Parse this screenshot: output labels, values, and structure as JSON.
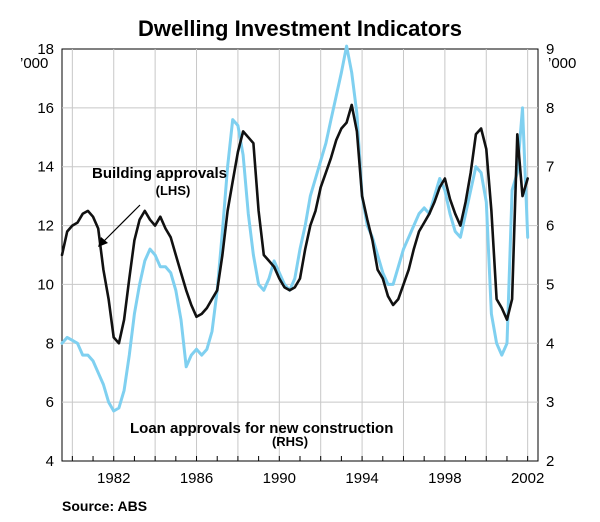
{
  "chart_data": {
    "type": "line",
    "title": "Dwelling Investment Indicators",
    "source": "Source: ABS",
    "left_axis": {
      "unit": "’000",
      "ylim": [
        4,
        18
      ],
      "ticks": [
        4,
        6,
        8,
        10,
        12,
        14,
        16,
        18
      ]
    },
    "right_axis": {
      "unit": "’000",
      "ylim": [
        2,
        9
      ],
      "ticks": [
        2,
        3,
        4,
        5,
        6,
        7,
        8,
        9
      ]
    },
    "x_axis": {
      "xlim": [
        1979.5,
        2002.5
      ],
      "ticks": [
        1982,
        1986,
        1990,
        1994,
        1998,
        2002
      ],
      "tick_labels": [
        "1982",
        "1986",
        "1990",
        "1994",
        "1998",
        "2002"
      ]
    },
    "series": [
      {
        "name": "Building approvals",
        "label_line1": "Building approvals",
        "label_line2": "(LHS)",
        "axis": "left",
        "color": "#111111",
        "x": [
          1979.5,
          1979.75,
          1980.0,
          1980.25,
          1980.5,
          1980.75,
          1981.0,
          1981.25,
          1981.5,
          1981.75,
          1982.0,
          1982.25,
          1982.5,
          1982.75,
          1983.0,
          1983.25,
          1983.5,
          1983.75,
          1984.0,
          1984.25,
          1984.5,
          1984.75,
          1985.0,
          1985.25,
          1985.5,
          1985.75,
          1986.0,
          1986.25,
          1986.5,
          1986.75,
          1987.0,
          1987.25,
          1987.5,
          1987.75,
          1988.0,
          1988.25,
          1988.5,
          1988.75,
          1989.0,
          1989.25,
          1989.5,
          1989.75,
          1990.0,
          1990.25,
          1990.5,
          1990.75,
          1991.0,
          1991.25,
          1991.5,
          1991.75,
          1992.0,
          1992.25,
          1992.5,
          1992.75,
          1993.0,
          1993.25,
          1993.5,
          1993.75,
          1994.0,
          1994.25,
          1994.5,
          1994.75,
          1995.0,
          1995.25,
          1995.5,
          1995.75,
          1996.0,
          1996.25,
          1996.5,
          1996.75,
          1997.0,
          1997.25,
          1997.5,
          1997.75,
          1998.0,
          1998.25,
          1998.5,
          1998.75,
          1999.0,
          1999.25,
          1999.5,
          1999.75,
          2000.0,
          2000.25,
          2000.5,
          2000.75,
          2001.0,
          2001.25,
          2001.5,
          2001.75,
          2002.0
        ],
        "values": [
          11.0,
          11.8,
          12.0,
          12.1,
          12.4,
          12.5,
          12.3,
          11.9,
          10.5,
          9.5,
          8.2,
          8.0,
          8.8,
          10.2,
          11.5,
          12.2,
          12.5,
          12.2,
          12.0,
          12.3,
          11.9,
          11.6,
          11.0,
          10.4,
          9.8,
          9.3,
          8.9,
          9.0,
          9.2,
          9.5,
          9.8,
          11.0,
          12.5,
          13.5,
          14.5,
          15.2,
          15.0,
          14.8,
          12.5,
          11.0,
          10.8,
          10.6,
          10.2,
          9.9,
          9.8,
          9.9,
          10.2,
          11.2,
          12.0,
          12.5,
          13.3,
          13.8,
          14.3,
          14.9,
          15.3,
          15.5,
          16.1,
          15.2,
          13.0,
          12.2,
          11.5,
          10.5,
          10.2,
          9.6,
          9.3,
          9.5,
          10.0,
          10.5,
          11.2,
          11.8,
          12.1,
          12.4,
          12.8,
          13.3,
          13.6,
          12.9,
          12.4,
          12.0,
          12.8,
          13.8,
          15.1,
          15.3,
          14.6,
          12.5,
          9.5,
          9.2,
          8.8,
          9.5,
          15.1,
          13.0,
          13.6
        ]
      },
      {
        "name": "Loan approvals for new construction",
        "label_line1": "Loan approvals for new construction",
        "label_line2": "(RHS)",
        "axis": "right",
        "color": "#7fd0f0",
        "x": [
          1979.5,
          1979.75,
          1980.0,
          1980.25,
          1980.5,
          1980.75,
          1981.0,
          1981.25,
          1981.5,
          1981.75,
          1982.0,
          1982.25,
          1982.5,
          1982.75,
          1983.0,
          1983.25,
          1983.5,
          1983.75,
          1984.0,
          1984.25,
          1984.5,
          1984.75,
          1985.0,
          1985.25,
          1985.5,
          1985.75,
          1986.0,
          1986.25,
          1986.5,
          1986.75,
          1987.0,
          1987.25,
          1987.5,
          1987.75,
          1988.0,
          1988.25,
          1988.5,
          1988.75,
          1989.0,
          1989.25,
          1989.5,
          1989.75,
          1990.0,
          1990.25,
          1990.5,
          1990.75,
          1991.0,
          1991.25,
          1991.5,
          1991.75,
          1992.0,
          1992.25,
          1992.5,
          1992.75,
          1993.0,
          1993.25,
          1993.5,
          1993.75,
          1994.0,
          1994.25,
          1994.5,
          1994.75,
          1995.0,
          1995.25,
          1995.5,
          1995.75,
          1996.0,
          1996.25,
          1996.5,
          1996.75,
          1997.0,
          1997.25,
          1997.5,
          1997.75,
          1998.0,
          1998.25,
          1998.5,
          1998.75,
          1999.0,
          1999.25,
          1999.5,
          1999.75,
          2000.0,
          2000.25,
          2000.5,
          2000.75,
          2001.0,
          2001.25,
          2001.5,
          2001.75,
          2002.0
        ],
        "values": [
          4.0,
          4.1,
          4.05,
          4.0,
          3.8,
          3.8,
          3.7,
          3.5,
          3.3,
          3.0,
          2.85,
          2.9,
          3.2,
          3.8,
          4.5,
          5.0,
          5.4,
          5.6,
          5.5,
          5.3,
          5.3,
          5.2,
          4.9,
          4.4,
          3.6,
          3.8,
          3.9,
          3.8,
          3.9,
          4.2,
          4.9,
          5.9,
          7.0,
          7.8,
          7.7,
          7.2,
          6.2,
          5.5,
          5.0,
          4.9,
          5.1,
          5.4,
          5.2,
          5.0,
          4.9,
          5.1,
          5.6,
          6.0,
          6.5,
          6.8,
          7.1,
          7.4,
          7.8,
          8.2,
          8.6,
          9.05,
          8.6,
          7.9,
          6.5,
          6.0,
          5.8,
          5.5,
          5.2,
          5.0,
          5.0,
          5.3,
          5.6,
          5.8,
          6.0,
          6.2,
          6.3,
          6.2,
          6.5,
          6.8,
          6.6,
          6.2,
          5.9,
          5.8,
          6.2,
          6.6,
          7.0,
          6.9,
          6.4,
          4.5,
          4.0,
          3.8,
          4.0,
          6.6,
          6.9,
          8.0,
          5.8
        ]
      }
    ]
  }
}
